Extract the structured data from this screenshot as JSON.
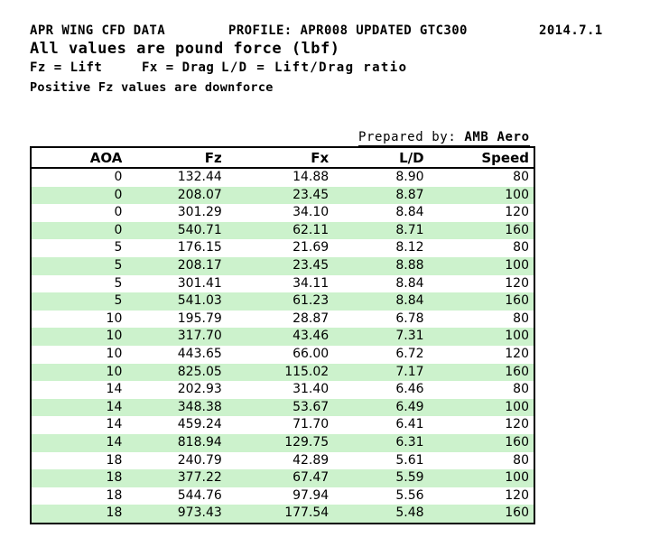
{
  "header": {
    "title_left": "APR WING CFD DATA",
    "title_profile": "PROFILE: APR008 UPDATED GTC300",
    "title_date": "2014.7.1",
    "subtitle": "All values are pound force (lbf)",
    "legend": {
      "fz": "Fz = Lift",
      "fx": "Fx = Drag",
      "ld": "L/D = Lift/Drag ratio"
    },
    "note": "Positive Fz values are downforce",
    "prepared_by_label": "Prepared by: ",
    "prepared_by_value": "AMB Aero"
  },
  "colors": {
    "alt_row_green": "#CCF2CC",
    "border": "#000000",
    "text": "#000000"
  },
  "chart_data": {
    "type": "table",
    "title": "APR WING CFD DATA",
    "columns": [
      "AOA",
      "Fz",
      "Fx",
      "L/D",
      "Speed"
    ],
    "rows": [
      [
        "0",
        "132.44",
        "14.88",
        "8.90",
        "80"
      ],
      [
        "0",
        "208.07",
        "23.45",
        "8.87",
        "100"
      ],
      [
        "0",
        "301.29",
        "34.10",
        "8.84",
        "120"
      ],
      [
        "0",
        "540.71",
        "62.11",
        "8.71",
        "160"
      ],
      [
        "5",
        "176.15",
        "21.69",
        "8.12",
        "80"
      ],
      [
        "5",
        "208.17",
        "23.45",
        "8.88",
        "100"
      ],
      [
        "5",
        "301.41",
        "34.11",
        "8.84",
        "120"
      ],
      [
        "5",
        "541.03",
        "61.23",
        "8.84",
        "160"
      ],
      [
        "10",
        "195.79",
        "28.87",
        "6.78",
        "80"
      ],
      [
        "10",
        "317.70",
        "43.46",
        "7.31",
        "100"
      ],
      [
        "10",
        "443.65",
        "66.00",
        "6.72",
        "120"
      ],
      [
        "10",
        "825.05",
        "115.02",
        "7.17",
        "160"
      ],
      [
        "14",
        "202.93",
        "31.40",
        "6.46",
        "80"
      ],
      [
        "14",
        "348.38",
        "53.67",
        "6.49",
        "100"
      ],
      [
        "14",
        "459.24",
        "71.70",
        "6.41",
        "120"
      ],
      [
        "14",
        "818.94",
        "129.75",
        "6.31",
        "160"
      ],
      [
        "18",
        "240.79",
        "42.89",
        "5.61",
        "80"
      ],
      [
        "18",
        "377.22",
        "67.47",
        "5.59",
        "100"
      ],
      [
        "18",
        "544.76",
        "97.94",
        "5.56",
        "120"
      ],
      [
        "18",
        "973.43",
        "177.54",
        "5.48",
        "160"
      ]
    ]
  }
}
